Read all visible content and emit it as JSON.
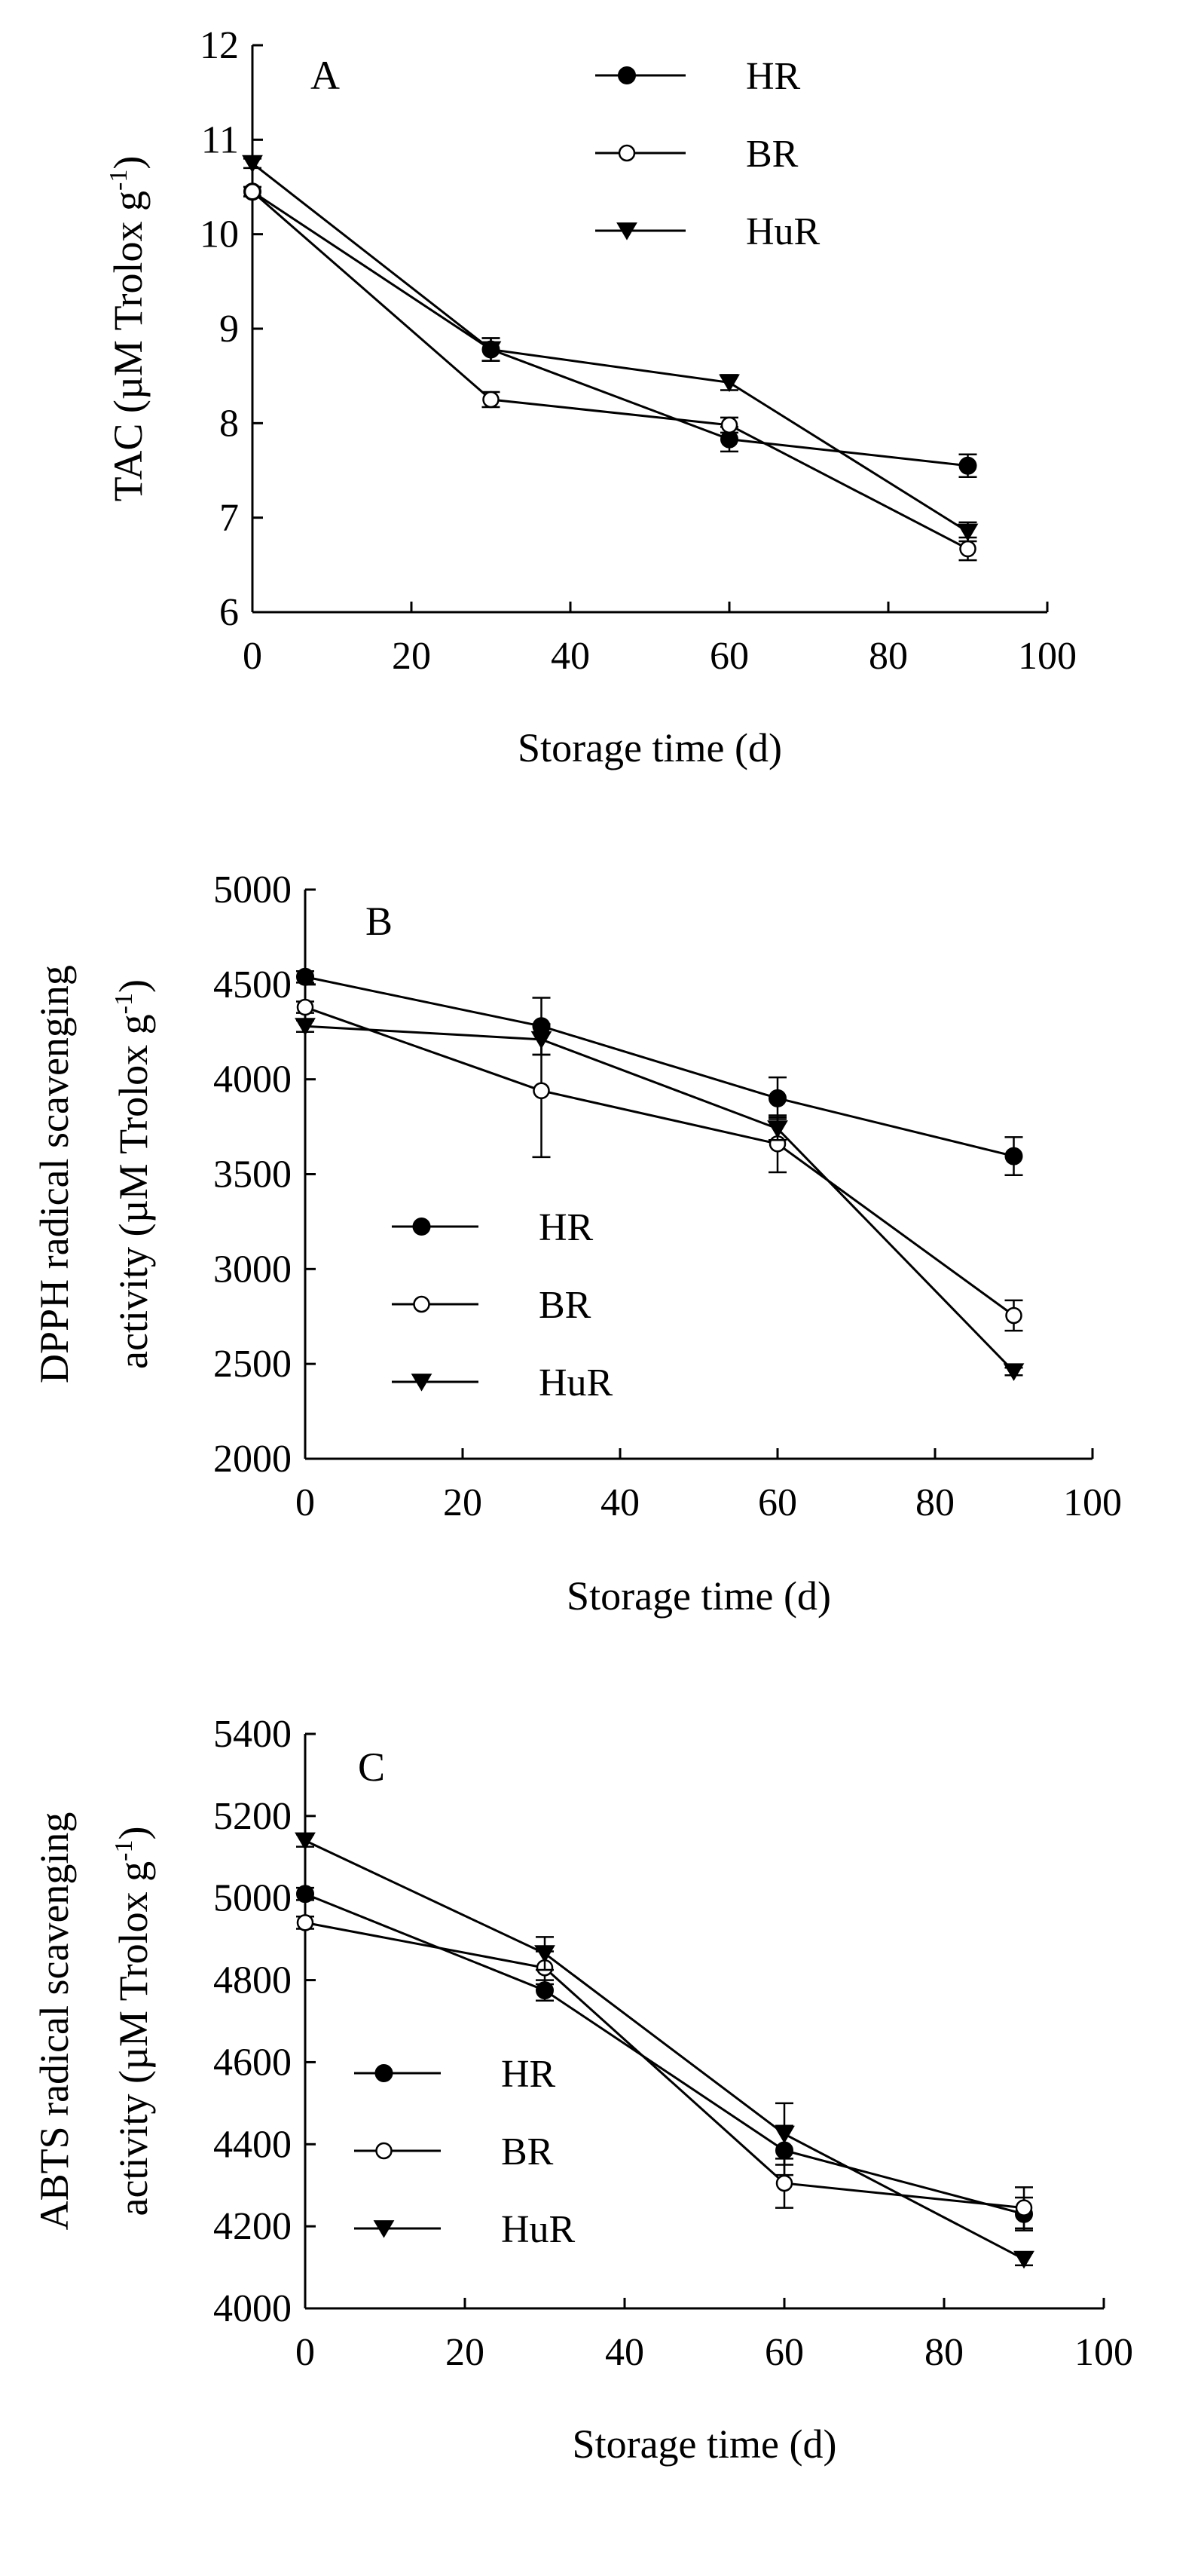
{
  "chart_data": [
    {
      "type": "line",
      "panel": "A",
      "xlabel": "Storage time (d)",
      "ylabel": "TAC (µM Trolox g",
      "ylabel_sup": "-1",
      "ylabel_close": ")",
      "xlim": [
        0,
        100
      ],
      "ylim": [
        6,
        12
      ],
      "x_ticks": [
        0,
        20,
        40,
        60,
        80,
        100
      ],
      "y_ticks": [
        6,
        7,
        8,
        9,
        10,
        11,
        12
      ],
      "grid": false,
      "legend_position": "top-center",
      "x": [
        0,
        30,
        60,
        90
      ],
      "series": [
        {
          "name": "HR",
          "marker": "filled-circle",
          "values": [
            10.45,
            8.78,
            7.83,
            7.55
          ],
          "errors": [
            0.05,
            0.12,
            0.13,
            0.12
          ]
        },
        {
          "name": "BR",
          "marker": "open-circle",
          "values": [
            10.45,
            8.25,
            7.98,
            6.67
          ],
          "errors": [
            0.05,
            0.08,
            0.08,
            0.12
          ]
        },
        {
          "name": "HuR",
          "marker": "filled-triangle",
          "values": [
            10.75,
            8.78,
            8.43,
            6.85
          ],
          "errors": [
            0.05,
            0.12,
            0.08,
            0.1
          ]
        }
      ]
    },
    {
      "type": "line",
      "panel": "B",
      "xlabel": "Storage time (d)",
      "ylabel": "DPPH radical scavenging",
      "ylabel2": "activity (µM Trolox g",
      "ylabel_sup": "-1",
      "ylabel_close": ")",
      "xlim": [
        0,
        100
      ],
      "ylim": [
        2000,
        5000
      ],
      "x_ticks": [
        0,
        20,
        40,
        60,
        80,
        100
      ],
      "y_ticks": [
        2000,
        2500,
        3000,
        3500,
        4000,
        4500,
        5000
      ],
      "grid": false,
      "legend_position": "bottom-left",
      "x": [
        0,
        30,
        60,
        90
      ],
      "series": [
        {
          "name": "HR",
          "marker": "filled-circle",
          "values": [
            4540,
            4280,
            3900,
            3595
          ],
          "errors": [
            30,
            150,
            110,
            100
          ]
        },
        {
          "name": "BR",
          "marker": "open-circle",
          "values": [
            4380,
            3940,
            3660,
            2755
          ],
          "errors": [
            30,
            350,
            150,
            80
          ]
        },
        {
          "name": "HuR",
          "marker": "filled-triangle",
          "values": [
            4280,
            4210,
            3740,
            2460
          ],
          "errors": [
            30,
            80,
            60,
            20
          ]
        }
      ]
    },
    {
      "type": "line",
      "panel": "C",
      "xlabel": "Storage time (d)",
      "ylabel": "ABTS radical scavenging",
      "ylabel2": "activity (µM Trolox g",
      "ylabel_sup": "-1",
      "ylabel_close": ")",
      "xlim": [
        0,
        100
      ],
      "ylim": [
        4000,
        5400
      ],
      "x_ticks": [
        0,
        20,
        40,
        60,
        80,
        100
      ],
      "y_ticks": [
        4000,
        4200,
        4400,
        4600,
        4800,
        5000,
        5200,
        5400
      ],
      "grid": false,
      "legend_position": "bottom-left",
      "x": [
        0,
        30,
        60,
        90
      ],
      "series": [
        {
          "name": "HR",
          "marker": "filled-circle",
          "values": [
            5010,
            4775,
            4385,
            4230
          ],
          "errors": [
            15,
            25,
            60,
            40
          ]
        },
        {
          "name": "BR",
          "marker": "open-circle",
          "values": [
            4940,
            4830,
            4305,
            4245
          ],
          "errors": [
            15,
            40,
            60,
            50
          ]
        },
        {
          "name": "HuR",
          "marker": "filled-triangle",
          "values": [
            5140,
            4865,
            4425,
            4120
          ],
          "errors": [
            15,
            40,
            75,
            15
          ]
        }
      ]
    }
  ]
}
